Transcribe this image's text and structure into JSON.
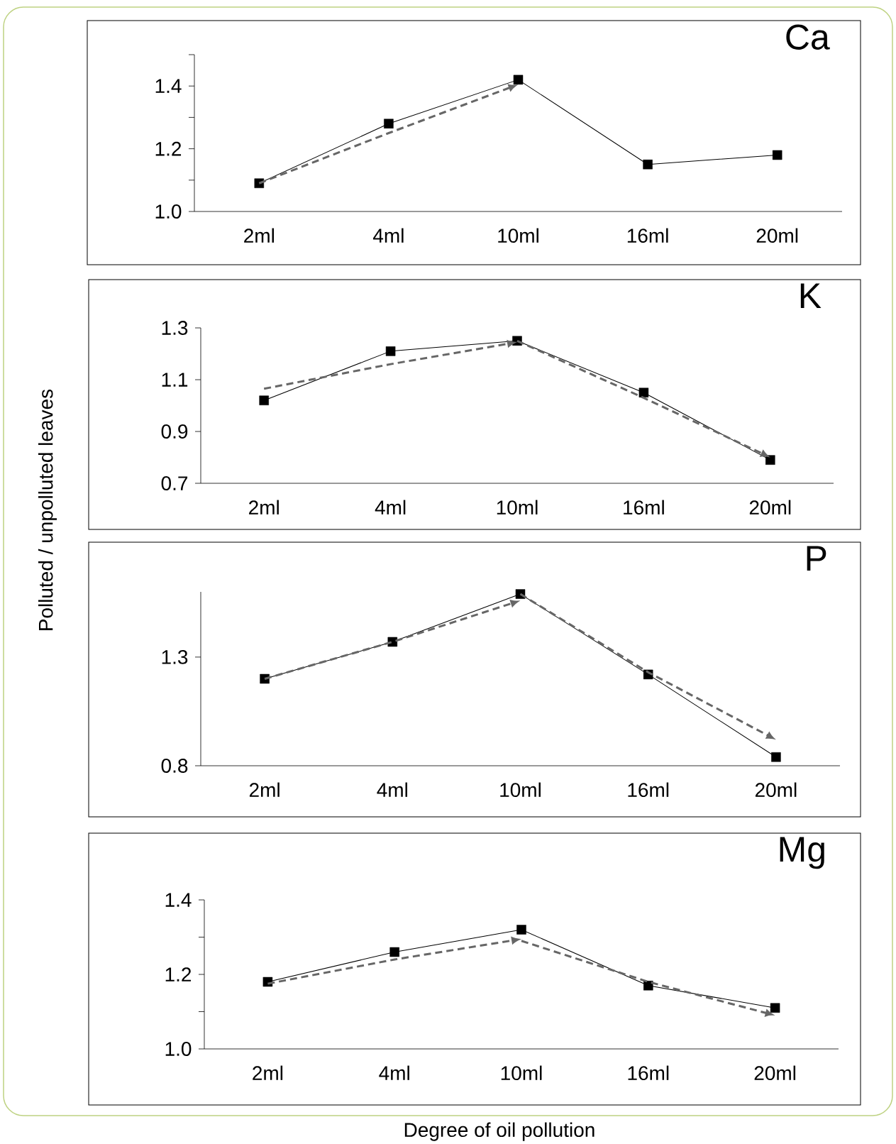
{
  "chart_data": [
    {
      "type": "line",
      "title": "Ca",
      "categories": [
        "2ml",
        "4ml",
        "10ml",
        "16ml",
        "20ml"
      ],
      "ylim": [
        1.0,
        1.5
      ],
      "yticks": [
        {
          "value": 1.0,
          "label": "1.0"
        },
        {
          "value": 1.1,
          "label": null
        },
        {
          "value": 1.2,
          "label": "1.2"
        },
        {
          "value": 1.3,
          "label": null
        },
        {
          "value": 1.4,
          "label": "1.4"
        },
        {
          "value": 1.5,
          "label": null
        }
      ],
      "grid": false,
      "series": [
        {
          "color": "#000000",
          "marker": "square",
          "line_style": "solid",
          "values": [
            1.09,
            1.28,
            1.42,
            1.15,
            1.18
          ]
        }
      ]
    },
    {
      "type": "line",
      "title": "K",
      "categories": [
        "2ml",
        "4ml",
        "10ml",
        "16ml",
        "20ml"
      ],
      "ylim": [
        0.7,
        1.3
      ],
      "yticks": [
        0.7,
        0.9,
        1.1,
        1.3
      ],
      "grid": false,
      "series": [
        {
          "color": "#000000",
          "marker": "square",
          "line_style": "solid",
          "values": [
            1.02,
            1.21,
            1.25,
            1.05,
            0.79
          ]
        }
      ]
    },
    {
      "type": "line",
      "title": "P",
      "ylabel": "Polluted / unpolluted leaves",
      "categories": [
        "2ml",
        "4ml",
        "10ml",
        "16ml",
        "20ml"
      ],
      "ylim": [
        0.8,
        1.6
      ],
      "yticks": [
        0.8,
        1.3
      ],
      "grid": false,
      "series": [
        {
          "color": "#000000",
          "marker": "square",
          "line_style": "solid",
          "values": [
            1.2,
            1.37,
            1.59,
            1.22,
            0.84
          ]
        }
      ]
    },
    {
      "type": "line",
      "title": "Mg",
      "xlabel": "Degree of oil pollution",
      "categories": [
        "2ml",
        "4ml",
        "10ml",
        "16ml",
        "20ml"
      ],
      "ylim": [
        1.0,
        1.4
      ],
      "yticks": [
        {
          "value": 1.0,
          "label": "1.0"
        },
        {
          "value": 1.1,
          "label": null
        },
        {
          "value": 1.2,
          "label": "1.2"
        },
        {
          "value": 1.3,
          "label": null
        },
        {
          "value": 1.4,
          "label": "1.4"
        }
      ],
      "grid": false,
      "series": [
        {
          "color": "#000000",
          "marker": "square",
          "line_style": "solid",
          "values": [
            1.18,
            1.26,
            1.32,
            1.17,
            1.11
          ]
        }
      ]
    }
  ]
}
